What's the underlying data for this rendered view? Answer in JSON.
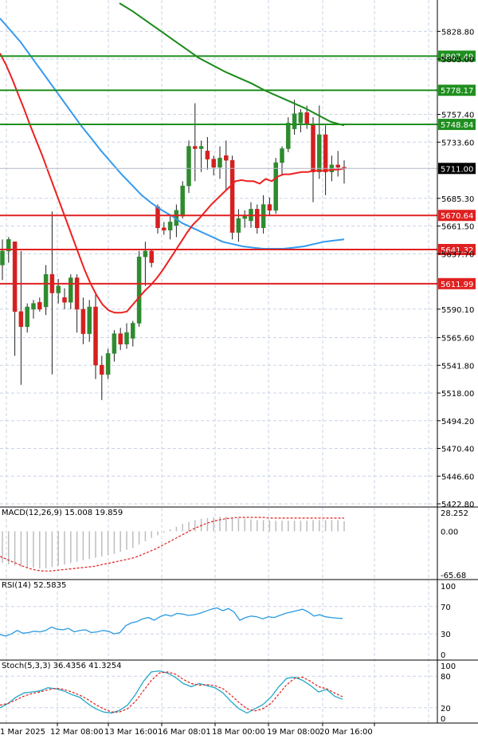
{
  "chart_data": {
    "type": "candlestick",
    "instrument_panel": {
      "y_ticks": [
        "5828.80",
        "5805.00",
        "5757.40",
        "5733.60",
        "5685.30",
        "5661.50",
        "5637.70",
        "5590.10",
        "5565.60",
        "5541.80",
        "5518.00",
        "5494.20",
        "5470.40",
        "5446.60",
        "5422.80"
      ],
      "ylim": [
        5422.8,
        5853
      ],
      "candles": [
        {
          "o": 5628,
          "h": 5650,
          "l": 5615,
          "c": 5640
        },
        {
          "o": 5640,
          "h": 5652,
          "l": 5630,
          "c": 5650
        },
        {
          "o": 5648,
          "h": 5648,
          "l": 5550,
          "c": 5588
        },
        {
          "o": 5588,
          "h": 5640,
          "l": 5525,
          "c": 5575
        },
        {
          "o": 5575,
          "h": 5595,
          "l": 5570,
          "c": 5592
        },
        {
          "o": 5590,
          "h": 5598,
          "l": 5582,
          "c": 5595
        },
        {
          "o": 5596,
          "h": 5600,
          "l": 5588,
          "c": 5590
        },
        {
          "o": 5592,
          "h": 5628,
          "l": 5585,
          "c": 5620
        },
        {
          "o": 5620,
          "h": 5674,
          "l": 5534,
          "c": 5604
        },
        {
          "o": 5604,
          "h": 5616,
          "l": 5595,
          "c": 5610
        },
        {
          "o": 5600,
          "h": 5608,
          "l": 5590,
          "c": 5596
        },
        {
          "o": 5596,
          "h": 5620,
          "l": 5590,
          "c": 5617
        },
        {
          "o": 5617,
          "h": 5620,
          "l": 5570,
          "c": 5590
        },
        {
          "o": 5590,
          "h": 5600,
          "l": 5560,
          "c": 5569
        },
        {
          "o": 5569,
          "h": 5598,
          "l": 5562,
          "c": 5592
        },
        {
          "o": 5592,
          "h": 5605,
          "l": 5530,
          "c": 5542
        },
        {
          "o": 5542,
          "h": 5550,
          "l": 5512,
          "c": 5534
        },
        {
          "o": 5534,
          "h": 5556,
          "l": 5530,
          "c": 5552
        },
        {
          "o": 5552,
          "h": 5572,
          "l": 5545,
          "c": 5569
        },
        {
          "o": 5569,
          "h": 5574,
          "l": 5555,
          "c": 5560
        },
        {
          "o": 5560,
          "h": 5578,
          "l": 5556,
          "c": 5570
        },
        {
          "o": 5565,
          "h": 5580,
          "l": 5558,
          "c": 5578
        },
        {
          "o": 5578,
          "h": 5640,
          "l": 5575,
          "c": 5635
        },
        {
          "o": 5635,
          "h": 5648,
          "l": 5610,
          "c": 5640
        },
        {
          "o": 5640,
          "h": 5642,
          "l": 5626,
          "c": 5630
        },
        {
          "o": 5678,
          "h": 5680,
          "l": 5655,
          "c": 5660
        },
        {
          "o": 5660,
          "h": 5665,
          "l": 5654,
          "c": 5658
        },
        {
          "o": 5658,
          "h": 5670,
          "l": 5650,
          "c": 5665
        },
        {
          "o": 5662,
          "h": 5680,
          "l": 5652,
          "c": 5675
        },
        {
          "o": 5670,
          "h": 5700,
          "l": 5668,
          "c": 5696
        },
        {
          "o": 5696,
          "h": 5735,
          "l": 5690,
          "c": 5730
        },
        {
          "o": 5730,
          "h": 5767,
          "l": 5700,
          "c": 5728
        },
        {
          "o": 5728,
          "h": 5735,
          "l": 5708,
          "c": 5730
        },
        {
          "o": 5726,
          "h": 5738,
          "l": 5710,
          "c": 5719
        },
        {
          "o": 5719,
          "h": 5722,
          "l": 5705,
          "c": 5712
        },
        {
          "o": 5712,
          "h": 5730,
          "l": 5702,
          "c": 5720
        },
        {
          "o": 5722,
          "h": 5735,
          "l": 5692,
          "c": 5718
        },
        {
          "o": 5718,
          "h": 5722,
          "l": 5650,
          "c": 5656
        },
        {
          "o": 5656,
          "h": 5676,
          "l": 5648,
          "c": 5668
        },
        {
          "o": 5668,
          "h": 5675,
          "l": 5660,
          "c": 5670
        },
        {
          "o": 5666,
          "h": 5682,
          "l": 5660,
          "c": 5676
        },
        {
          "o": 5676,
          "h": 5680,
          "l": 5655,
          "c": 5660
        },
        {
          "o": 5660,
          "h": 5688,
          "l": 5655,
          "c": 5680
        },
        {
          "o": 5680,
          "h": 5686,
          "l": 5670,
          "c": 5675
        },
        {
          "o": 5675,
          "h": 5720,
          "l": 5672,
          "c": 5716
        },
        {
          "o": 5716,
          "h": 5730,
          "l": 5705,
          "c": 5728
        },
        {
          "o": 5728,
          "h": 5755,
          "l": 5725,
          "c": 5750
        },
        {
          "o": 5745,
          "h": 5770,
          "l": 5740,
          "c": 5758
        },
        {
          "o": 5750,
          "h": 5762,
          "l": 5742,
          "c": 5759
        },
        {
          "o": 5759,
          "h": 5765,
          "l": 5745,
          "c": 5749
        },
        {
          "o": 5749,
          "h": 5755,
          "l": 5682,
          "c": 5708
        },
        {
          "o": 5708,
          "h": 5765,
          "l": 5702,
          "c": 5740
        },
        {
          "o": 5740,
          "h": 5748,
          "l": 5688,
          "c": 5708
        },
        {
          "o": 5708,
          "h": 5722,
          "l": 5700,
          "c": 5714
        },
        {
          "o": 5714,
          "h": 5726,
          "l": 5704,
          "c": 5712
        },
        {
          "o": 5712,
          "h": 5718,
          "l": 5698,
          "c": 5711
        }
      ],
      "ma_fast": [
        5810,
        5800,
        5788,
        5775,
        5762,
        5748,
        5735,
        5722,
        5708,
        5694,
        5680,
        5666,
        5652,
        5638,
        5624,
        5612,
        5602,
        5594,
        5589,
        5587,
        5587,
        5588,
        5594,
        5600,
        5606,
        5611,
        5617,
        5624,
        5632,
        5640,
        5648,
        5656,
        5663,
        5668,
        5674,
        5680,
        5685,
        5690,
        5695,
        5700,
        5701,
        5700,
        5700,
        5698,
        5702,
        5700,
        5704,
        5706,
        5706,
        5707,
        5708,
        5708,
        5709,
        5709,
        5709,
        5710,
        5710,
        5711
      ],
      "ma_mid": [
        5840,
        5830,
        5820,
        5808,
        5796,
        5784,
        5772,
        5760,
        5748,
        5737,
        5726,
        5716,
        5706,
        5697,
        5688,
        5681,
        5675,
        5670,
        5664,
        5660,
        5656,
        5652,
        5648,
        5646,
        5644,
        5643,
        5642,
        5642,
        5642,
        5643,
        5644,
        5646,
        5648,
        5649,
        5650
      ],
      "ma_slow": [
        5853,
        5846,
        5838,
        5830,
        5822,
        5814,
        5806,
        5800,
        5794,
        5789,
        5784,
        5778,
        5773,
        5768,
        5763,
        5757,
        5751,
        5748
      ],
      "resistance_lines": [
        "5807.49",
        "5778.17",
        "5748.84"
      ],
      "support_lines": [
        "5670.64",
        "5641.32",
        "5611.99"
      ],
      "current_price": "5711.00",
      "colors": {
        "bull": "#2e8b2e",
        "bear": "#d42020",
        "resistance": "#1f8f1f",
        "support": "#e02020",
        "ma_fast": "#ee2020",
        "ma_mid": "#3399ee",
        "ma_slow": "#1a8a1a",
        "grid": "#c9d3e3"
      }
    },
    "macd_panel": {
      "label": "MACD(12,26,9) 15.008 19.859",
      "y_ticks": [
        "28.252",
        "0.00",
        "-65.68"
      ],
      "ylim": [
        -65.68,
        28.252
      ],
      "histogram": [
        -48,
        -50,
        -52,
        -54,
        -55,
        -55,
        -56,
        -56,
        -54,
        -52,
        -50,
        -48,
        -46,
        -44,
        -42,
        -40,
        -38,
        -36,
        -34,
        -31,
        -28,
        -25,
        -20,
        -15,
        -10,
        -6,
        -2,
        3,
        7,
        11,
        14,
        17,
        19,
        20,
        21,
        22,
        22,
        21,
        20,
        19,
        18,
        17,
        17,
        16,
        16,
        16,
        16,
        16,
        16,
        16,
        17,
        17,
        17,
        17,
        17,
        15
      ],
      "signal": [
        -38,
        -42,
        -46,
        -50,
        -54,
        -57,
        -59,
        -60,
        -60,
        -59,
        -58,
        -57,
        -56,
        -55,
        -54,
        -53,
        -51,
        -49,
        -47,
        -45,
        -43,
        -41,
        -38,
        -34,
        -30,
        -26,
        -21,
        -16,
        -11,
        -6,
        -1,
        4,
        8,
        12,
        15,
        17,
        19,
        20,
        21,
        21,
        21,
        21,
        21,
        20,
        20,
        20,
        20,
        20,
        20,
        20,
        20,
        20,
        20,
        20,
        20,
        20
      ]
    },
    "rsi_panel": {
      "label": "RSI(14) 52.5835",
      "y_ticks": [
        "100",
        "70",
        "30",
        "0"
      ],
      "ylim": [
        0,
        100
      ],
      "values": [
        29,
        27,
        30,
        35,
        31,
        32,
        34,
        33,
        35,
        40,
        37,
        36,
        38,
        33,
        35,
        36,
        32,
        33,
        35,
        34,
        30,
        32,
        42,
        46,
        48,
        52,
        54,
        50,
        55,
        58,
        56,
        60,
        59,
        57,
        58,
        60,
        63,
        66,
        68,
        64,
        67,
        62,
        50,
        54,
        56,
        55,
        52,
        55,
        54,
        57,
        60,
        62,
        64,
        66,
        62,
        56,
        58,
        55,
        54,
        53,
        52.58
      ]
    },
    "stoch_panel": {
      "label": "Stoch(5,3,3) 36.4356 41.3254",
      "y_ticks": [
        "100",
        "80",
        "20",
        "0"
      ],
      "ylim": [
        0,
        100
      ],
      "k": [
        20,
        28,
        40,
        48,
        50,
        52,
        58,
        56,
        52,
        45,
        40,
        28,
        18,
        12,
        10,
        15,
        25,
        45,
        70,
        88,
        90,
        86,
        78,
        66,
        60,
        66,
        62,
        58,
        48,
        32,
        18,
        10,
        18,
        26,
        40,
        60,
        76,
        78,
        72,
        62,
        50,
        55,
        42,
        36
      ],
      "d": [
        25,
        28,
        35,
        42,
        47,
        50,
        54,
        57,
        55,
        50,
        44,
        36,
        26,
        18,
        12,
        12,
        18,
        32,
        52,
        72,
        86,
        88,
        84,
        74,
        66,
        63,
        64,
        62,
        56,
        44,
        30,
        18,
        14,
        18,
        28,
        46,
        64,
        76,
        78,
        70,
        60,
        56,
        48,
        41
      ]
    },
    "x_labels": [
      "1 Mar 2025",
      "12 Mar 08:00",
      "13 Mar 16:00",
      "16 Mar 08:01",
      "18 Mar 00:00",
      "19 Mar 08:00",
      "20 Mar 16:00"
    ]
  }
}
